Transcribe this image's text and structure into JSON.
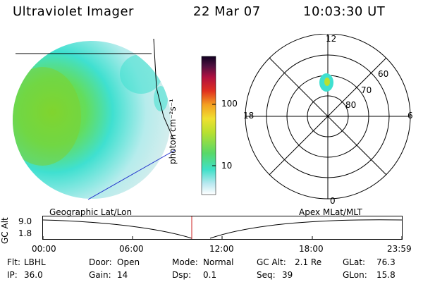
{
  "header": {
    "title": "Ultraviolet Imager",
    "date": "22 Mar 07",
    "time": "10:03:30 UT"
  },
  "colorbar": {
    "unit_label": "photon cm⁻²s⁻¹",
    "ticks": [
      "100",
      "10"
    ]
  },
  "polar_plot": {
    "hour_labels": [
      "12",
      "18",
      "6",
      "0"
    ],
    "lat_labels": [
      "60",
      "70",
      "80"
    ]
  },
  "timeline": {
    "left_label": "Geographic Lat/Lon",
    "right_label": "Apex MLat/MLT",
    "axis_label": "GC Alt",
    "y_ticks": [
      "9.0",
      "1.8"
    ],
    "x_ticks": [
      "00:00",
      "06:00",
      "12:00",
      "18:00",
      "23:59"
    ]
  },
  "info_rows": [
    [
      {
        "label": "Flt:",
        "value": "LBHL"
      },
      {
        "label": "Door:",
        "value": "Open"
      },
      {
        "label": "Mode:",
        "value": "Normal"
      },
      {
        "label": "GC Alt:",
        "value": "2.1 Re"
      },
      {
        "label": "GLat:",
        "value": "76.3"
      }
    ],
    [
      {
        "label": "IP:",
        "value": "36.0"
      },
      {
        "label": "Gain:",
        "value": "14"
      },
      {
        "label": "Dsp:",
        "value": "0.1"
      },
      {
        "label": "Seq:",
        "value": "39"
      },
      {
        "label": "GLon:",
        "value": "15.8"
      }
    ]
  ],
  "colors": {
    "background": "#ffffff",
    "terminator_line": "#000000",
    "limb_line": "#2233cc",
    "current_time_marker": "#cc2222",
    "image_green": "#7cd233",
    "image_cyan": "#3fe0d0",
    "image_pale": "#e0ecec"
  }
}
